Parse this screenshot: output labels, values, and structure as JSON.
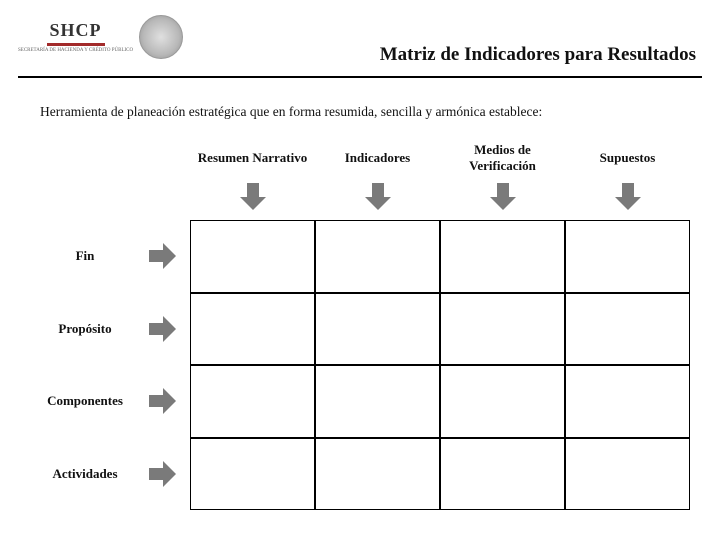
{
  "header": {
    "logo_text": "SHCP",
    "logo_sub": "SECRETARÍA DE HACIENDA Y CRÉDITO PÚBLICO",
    "title": "Matriz de Indicadores para Resultados"
  },
  "subtitle": "Herramienta de planeación estratégica que en forma resumida, sencilla y armónica establece:",
  "columns": [
    {
      "label": "Resumen Narrativo"
    },
    {
      "label": "Indicadores"
    },
    {
      "label": "Medios de Verificación"
    },
    {
      "label": "Supuestos"
    }
  ],
  "rows": [
    {
      "label": "Fin"
    },
    {
      "label": "Propósito"
    },
    {
      "label": "Componentes"
    },
    {
      "label": "Actividades"
    }
  ],
  "style": {
    "arrow_color": "#7a7a7a",
    "grid_border_color": "#000000",
    "hr_color": "#000000",
    "background": "#ffffff",
    "title_fontsize": 19,
    "subtitle_fontsize": 13.5,
    "header_fontsize": 13,
    "rowlabel_fontsize": 13,
    "n_cols": 4,
    "n_rows": 4
  }
}
